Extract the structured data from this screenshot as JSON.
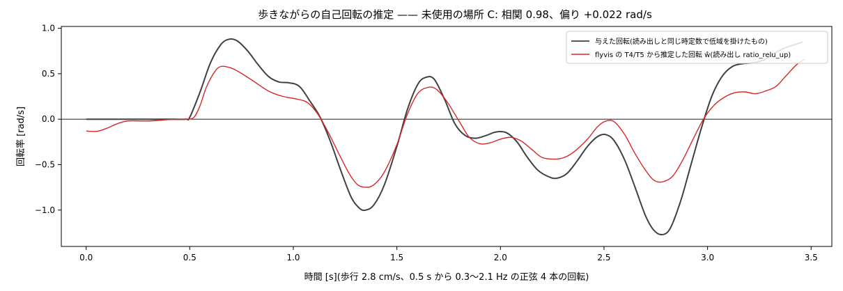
{
  "chart_data": {
    "type": "line",
    "title": "歩きながらの自己回転の推定 —— 未使用の場所 C: 相関 0.98、偏り +0.022 rad/s",
    "xlabel": "時間 [s](歩行 2.8 cm/s、0.5 s から 0.3〜2.1 Hz の正弦 4 本の回転)",
    "ylabel": "回転率 [rad/s]",
    "xlim": [
      -0.12,
      3.6
    ],
    "ylim": [
      -1.4,
      1.02
    ],
    "xticks": [
      0.0,
      0.5,
      1.0,
      1.5,
      2.0,
      2.5,
      3.0,
      3.5
    ],
    "xtick_labels": [
      "0.0",
      "0.5",
      "1.0",
      "1.5",
      "2.0",
      "2.5",
      "3.0",
      "3.5"
    ],
    "yticks": [
      1.0,
      0.5,
      0.0,
      -0.5,
      -1.0
    ],
    "ytick_labels": [
      "1.0",
      "0.5",
      "0.0",
      "−0.5",
      "−1.0"
    ],
    "zero_line": true,
    "grid": false,
    "legend_position": "top-right",
    "series": [
      {
        "name": "与えた回転(読み出しと同じ時定数で低域を掛けたもの)",
        "color": "#404040",
        "points": [
          [
            0.0,
            0.0
          ],
          [
            0.1,
            0.0
          ],
          [
            0.2,
            0.0
          ],
          [
            0.3,
            0.0
          ],
          [
            0.4,
            0.0
          ],
          [
            0.48,
            0.0
          ],
          [
            0.5,
            0.02
          ],
          [
            0.55,
            0.3
          ],
          [
            0.6,
            0.62
          ],
          [
            0.65,
            0.82
          ],
          [
            0.69,
            0.88
          ],
          [
            0.73,
            0.86
          ],
          [
            0.78,
            0.75
          ],
          [
            0.83,
            0.6
          ],
          [
            0.88,
            0.47
          ],
          [
            0.93,
            0.41
          ],
          [
            0.98,
            0.4
          ],
          [
            1.03,
            0.36
          ],
          [
            1.08,
            0.2
          ],
          [
            1.13,
            0.02
          ],
          [
            1.18,
            -0.25
          ],
          [
            1.23,
            -0.57
          ],
          [
            1.28,
            -0.86
          ],
          [
            1.32,
            -0.98
          ],
          [
            1.35,
            -1.0
          ],
          [
            1.39,
            -0.94
          ],
          [
            1.44,
            -0.72
          ],
          [
            1.5,
            -0.3
          ],
          [
            1.55,
            0.1
          ],
          [
            1.6,
            0.38
          ],
          [
            1.64,
            0.46
          ],
          [
            1.68,
            0.44
          ],
          [
            1.73,
            0.22
          ],
          [
            1.78,
            -0.05
          ],
          [
            1.83,
            -0.18
          ],
          [
            1.88,
            -0.21
          ],
          [
            1.93,
            -0.18
          ],
          [
            1.98,
            -0.14
          ],
          [
            2.03,
            -0.15
          ],
          [
            2.08,
            -0.25
          ],
          [
            2.13,
            -0.42
          ],
          [
            2.18,
            -0.56
          ],
          [
            2.23,
            -0.63
          ],
          [
            2.27,
            -0.65
          ],
          [
            2.32,
            -0.6
          ],
          [
            2.37,
            -0.46
          ],
          [
            2.42,
            -0.3
          ],
          [
            2.47,
            -0.19
          ],
          [
            2.51,
            -0.17
          ],
          [
            2.55,
            -0.24
          ],
          [
            2.6,
            -0.45
          ],
          [
            2.65,
            -0.75
          ],
          [
            2.7,
            -1.06
          ],
          [
            2.74,
            -1.22
          ],
          [
            2.78,
            -1.27
          ],
          [
            2.82,
            -1.2
          ],
          [
            2.87,
            -0.9
          ],
          [
            2.92,
            -0.5
          ],
          [
            2.97,
            -0.1
          ],
          [
            3.02,
            0.25
          ],
          [
            3.07,
            0.47
          ],
          [
            3.12,
            0.58
          ],
          [
            3.17,
            0.61
          ],
          [
            3.22,
            0.62
          ],
          [
            3.27,
            0.65
          ],
          [
            3.32,
            0.72
          ],
          [
            3.37,
            0.78
          ],
          [
            3.42,
            0.82
          ],
          [
            3.46,
            0.85
          ]
        ]
      },
      {
        "name": "flyvis の T4/T5 から推定した回転 ŵ(読み出し ratio_relu_up)",
        "color": "#d62728",
        "points": [
          [
            0.0,
            -0.13
          ],
          [
            0.03,
            -0.135
          ],
          [
            0.06,
            -0.13
          ],
          [
            0.1,
            -0.1
          ],
          [
            0.15,
            -0.05
          ],
          [
            0.2,
            -0.02
          ],
          [
            0.3,
            -0.02
          ],
          [
            0.4,
            -0.005
          ],
          [
            0.48,
            0.0
          ],
          [
            0.52,
            0.02
          ],
          [
            0.55,
            0.15
          ],
          [
            0.58,
            0.35
          ],
          [
            0.62,
            0.52
          ],
          [
            0.65,
            0.58
          ],
          [
            0.69,
            0.57
          ],
          [
            0.73,
            0.53
          ],
          [
            0.8,
            0.43
          ],
          [
            0.88,
            0.31
          ],
          [
            0.95,
            0.25
          ],
          [
            1.02,
            0.22
          ],
          [
            1.07,
            0.18
          ],
          [
            1.12,
            0.05
          ],
          [
            1.17,
            -0.15
          ],
          [
            1.22,
            -0.38
          ],
          [
            1.27,
            -0.6
          ],
          [
            1.31,
            -0.72
          ],
          [
            1.35,
            -0.75
          ],
          [
            1.39,
            -0.72
          ],
          [
            1.44,
            -0.58
          ],
          [
            1.5,
            -0.28
          ],
          [
            1.55,
            0.05
          ],
          [
            1.6,
            0.28
          ],
          [
            1.65,
            0.35
          ],
          [
            1.69,
            0.33
          ],
          [
            1.74,
            0.2
          ],
          [
            1.8,
            -0.02
          ],
          [
            1.85,
            -0.2
          ],
          [
            1.9,
            -0.27
          ],
          [
            1.95,
            -0.26
          ],
          [
            2.0,
            -0.22
          ],
          [
            2.05,
            -0.2
          ],
          [
            2.1,
            -0.24
          ],
          [
            2.15,
            -0.33
          ],
          [
            2.2,
            -0.42
          ],
          [
            2.26,
            -0.44
          ],
          [
            2.31,
            -0.42
          ],
          [
            2.36,
            -0.35
          ],
          [
            2.42,
            -0.22
          ],
          [
            2.47,
            -0.08
          ],
          [
            2.51,
            -0.02
          ],
          [
            2.55,
            -0.03
          ],
          [
            2.6,
            -0.17
          ],
          [
            2.65,
            -0.38
          ],
          [
            2.7,
            -0.56
          ],
          [
            2.74,
            -0.67
          ],
          [
            2.78,
            -0.69
          ],
          [
            2.83,
            -0.63
          ],
          [
            2.88,
            -0.45
          ],
          [
            2.93,
            -0.22
          ],
          [
            2.98,
            0.0
          ],
          [
            3.03,
            0.15
          ],
          [
            3.08,
            0.24
          ],
          [
            3.13,
            0.29
          ],
          [
            3.18,
            0.3
          ],
          [
            3.23,
            0.28
          ],
          [
            3.28,
            0.31
          ],
          [
            3.33,
            0.36
          ],
          [
            3.38,
            0.48
          ],
          [
            3.43,
            0.6
          ],
          [
            3.47,
            0.66
          ]
        ]
      }
    ]
  }
}
